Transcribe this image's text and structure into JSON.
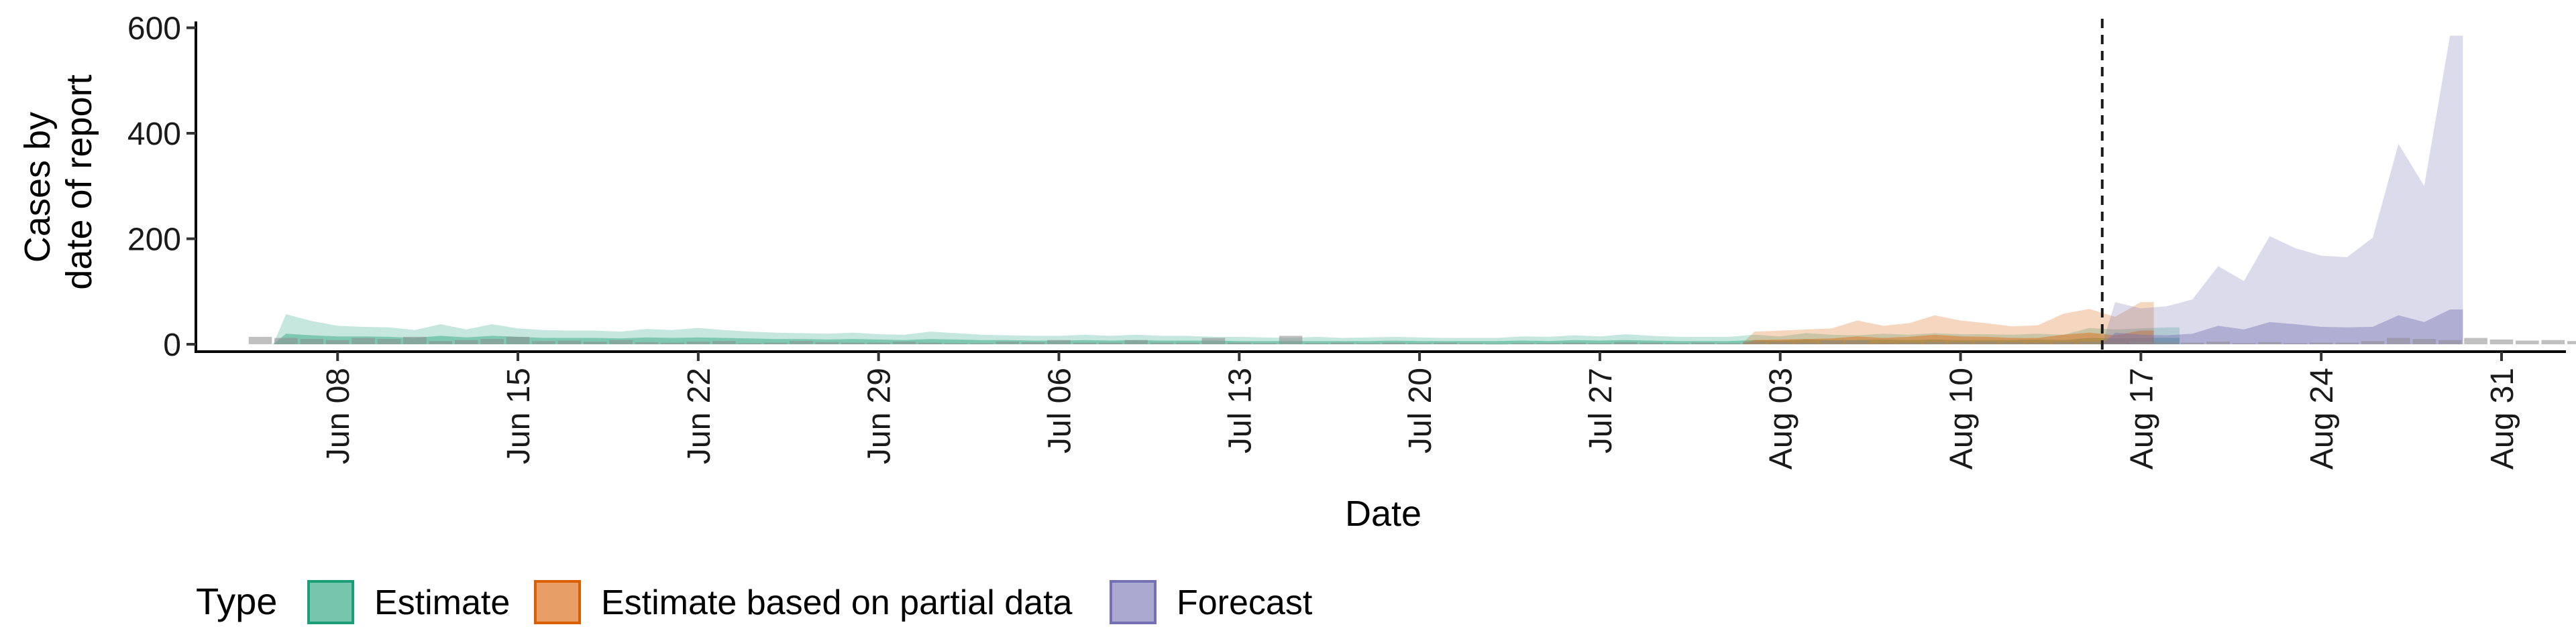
{
  "chart_data": {
    "type": "area",
    "xlabel": "Date",
    "ylabel_lines": [
      "Cases by",
      "date of report"
    ],
    "yticks": [
      0,
      200,
      400,
      600
    ],
    "ylim": [
      -14,
      612
    ],
    "xticks": [
      "Jun 08",
      "Jun 15",
      "Jun 22",
      "Jun 29",
      "Jul 06",
      "Jul 13",
      "Jul 20",
      "Jul 27",
      "Aug 03",
      "Aug 10",
      "Aug 17",
      "Aug 24",
      "Aug 31"
    ],
    "x_start_date": "2020-06-01",
    "xlim_days": [
      1.5,
      93.5
    ],
    "forecast_date": "2020-08-15",
    "legend": {
      "title": "Type",
      "position": "bottom",
      "items": [
        {
          "label": "Estimate",
          "color": "#1B9E77"
        },
        {
          "label": "Estimate based on partial data",
          "color": "#D95F02"
        },
        {
          "label": "Forecast",
          "color": "#7570B3"
        }
      ]
    },
    "observed_color": "#8c8c8c",
    "series": [
      {
        "name": "Estimate",
        "color": "#1B9E77",
        "start_date": "2020-06-06",
        "upper90": [
          57,
          44,
          35,
          33,
          32,
          27,
          38,
          28,
          38,
          30,
          27,
          26,
          26,
          24,
          29,
          27,
          31,
          27,
          24,
          22,
          21,
          20,
          22,
          19,
          18,
          24,
          21,
          18,
          17,
          16,
          16,
          18,
          16,
          18,
          16,
          16,
          14,
          14,
          13,
          12,
          14,
          12,
          13,
          14,
          13,
          12,
          12,
          12,
          15,
          14,
          17,
          15,
          19,
          16,
          14,
          14,
          14,
          18,
          15,
          21,
          18,
          17,
          20,
          18,
          21,
          19,
          19,
          18,
          20,
          18,
          31,
          28,
          30,
          32
        ],
        "upper50": [
          20,
          17,
          15,
          15,
          14,
          12,
          16,
          13,
          16,
          14,
          12,
          12,
          12,
          11,
          13,
          12,
          13,
          12,
          11,
          10,
          10,
          9,
          10,
          9,
          8,
          10,
          9,
          8,
          8,
          7,
          7,
          8,
          7,
          8,
          7,
          7,
          7,
          6,
          6,
          6,
          6,
          6,
          6,
          7,
          6,
          6,
          6,
          6,
          7,
          6,
          8,
          7,
          8,
          7,
          6,
          6,
          6,
          8,
          7,
          9,
          8,
          8,
          9,
          8,
          9,
          8,
          8,
          8,
          9,
          8,
          12,
          11,
          12,
          12
        ],
        "lower": 0
      },
      {
        "name": "Estimate based on partial data",
        "color": "#D95F02",
        "start_date": "2020-08-02",
        "upper90": [
          24,
          26,
          28,
          30,
          45,
          35,
          40,
          55,
          45,
          40,
          34,
          36,
          58,
          67,
          52,
          80
        ],
        "upper50": [
          8,
          9,
          10,
          11,
          15,
          12,
          14,
          18,
          15,
          14,
          12,
          12,
          18,
          22,
          17,
          26
        ],
        "lower": 0
      },
      {
        "name": "Forecast",
        "color": "#7570B3",
        "start_date": "2020-08-16",
        "upper90": [
          80,
          68,
          72,
          85,
          148,
          120,
          205,
          182,
          168,
          165,
          202,
          380,
          300,
          585
        ],
        "upper50": [
          22,
          18,
          17,
          20,
          35,
          28,
          42,
          38,
          33,
          32,
          33,
          55,
          42,
          66
        ],
        "lower": 0
      }
    ],
    "observed": {
      "start_date": "2020-06-05",
      "values": [
        14,
        12,
        10,
        8,
        12,
        10,
        14,
        6,
        8,
        10,
        14,
        6,
        7,
        5,
        8,
        4,
        3,
        5,
        6,
        2,
        3,
        6,
        4,
        3,
        3,
        5,
        3,
        2,
        2,
        5,
        4,
        8,
        3,
        3,
        8,
        3,
        3,
        12,
        3,
        2,
        16,
        2,
        3,
        2,
        3,
        2,
        3,
        2,
        1,
        2,
        2,
        3,
        2,
        4,
        3,
        2,
        3,
        2,
        5,
        4,
        3,
        7,
        8,
        2,
        3,
        4,
        4,
        5,
        4,
        3,
        4,
        5,
        2,
        5,
        4,
        3,
        5,
        2,
        4,
        2,
        3,
        3,
        6,
        12,
        10,
        8,
        12,
        9,
        7,
        8,
        6,
        4,
        7,
        9,
        10,
        20,
        13,
        18,
        14,
        8
      ]
    }
  }
}
